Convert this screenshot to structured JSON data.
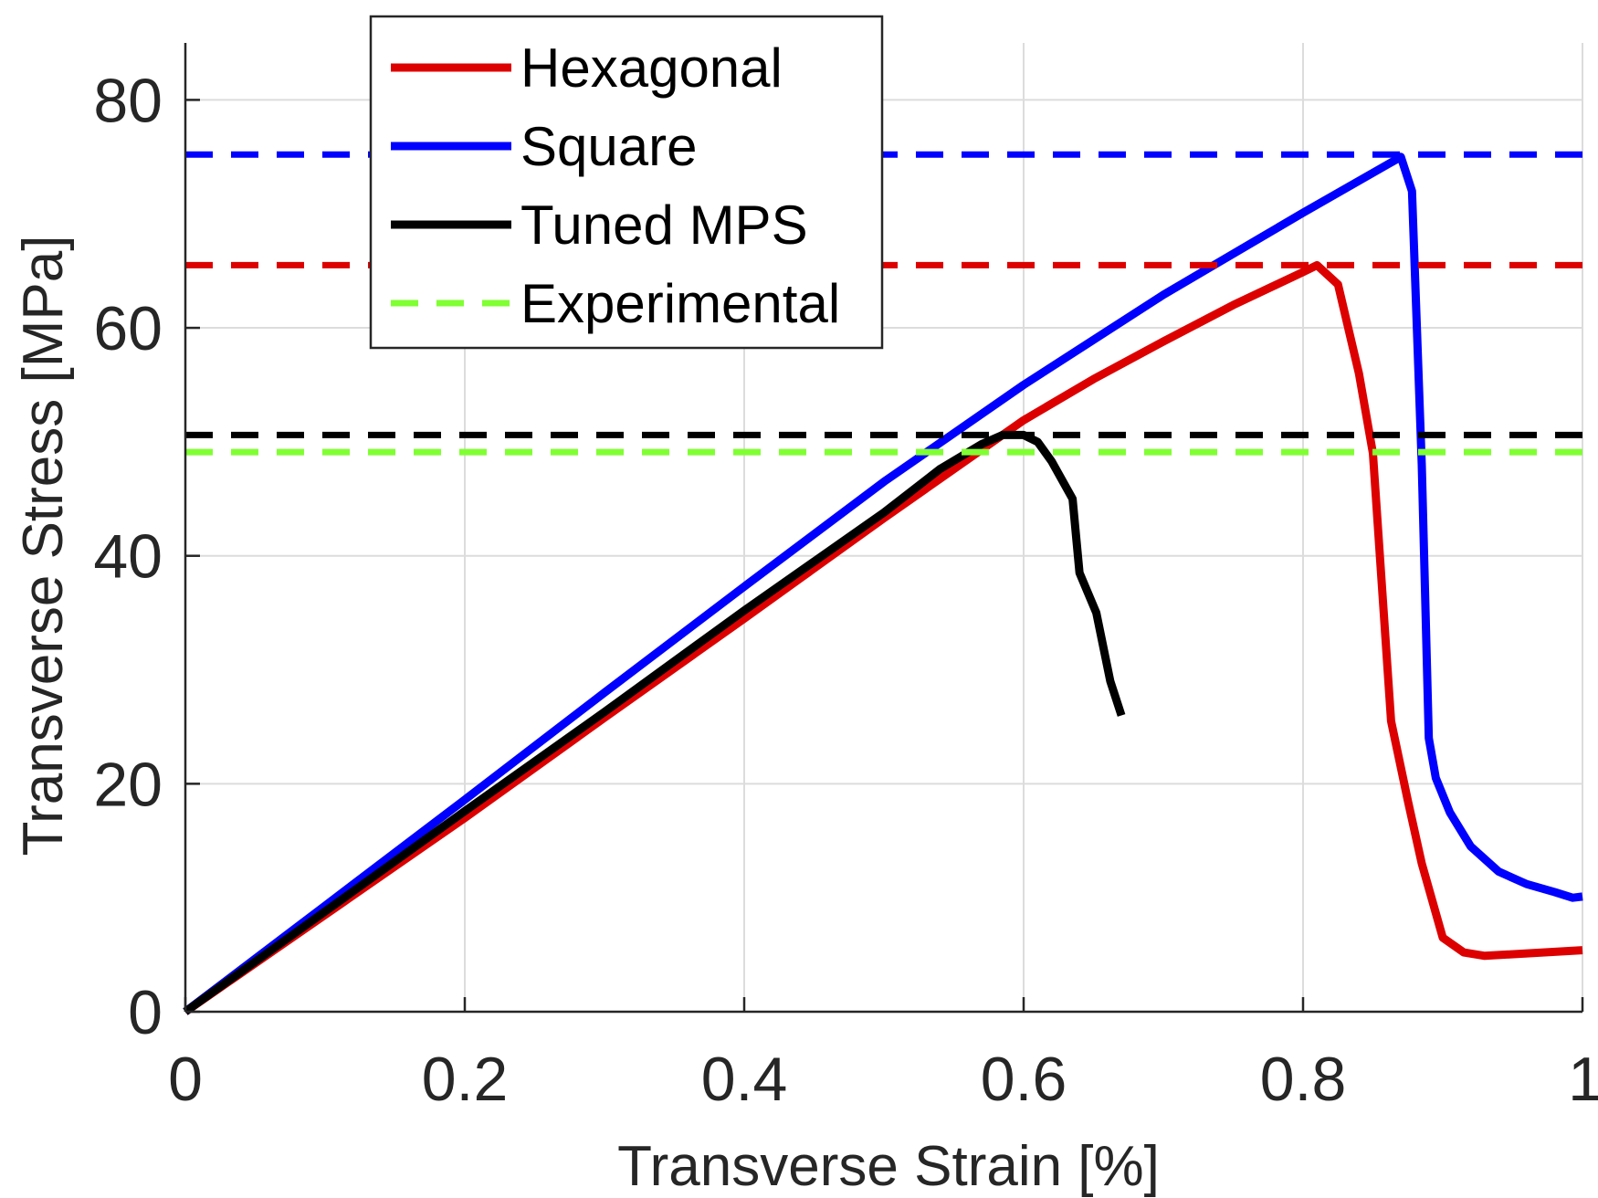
{
  "chart_data": {
    "type": "line",
    "title": "",
    "xlabel": "Transverse Strain [%]",
    "ylabel": "Transverse Stress [MPa]",
    "xlim": [
      0,
      1
    ],
    "ylim": [
      0,
      85
    ],
    "xticks": [
      0,
      0.2,
      0.4,
      0.6,
      0.8,
      1
    ],
    "xtick_labels": [
      "0",
      "0.2",
      "0.4",
      "0.6",
      "0.8",
      "1"
    ],
    "yticks": [
      0,
      20,
      40,
      60,
      80
    ],
    "ytick_labels": [
      "0",
      "20",
      "40",
      "60",
      "80"
    ],
    "grid": true,
    "legend_position": "top-left",
    "series": [
      {
        "name": "Hexagonal",
        "color": "#dd0000",
        "style": "solid",
        "x": [
          0,
          0.1,
          0.2,
          0.3,
          0.4,
          0.5,
          0.55,
          0.6,
          0.65,
          0.7,
          0.75,
          0.8,
          0.81,
          0.825,
          0.84,
          0.85,
          0.863,
          0.875,
          0.885,
          0.9,
          0.915,
          0.93,
          1.0
        ],
        "y": [
          0,
          8.5,
          17,
          25.8,
          34.5,
          43.3,
          47.6,
          51.9,
          55.5,
          58.8,
          62,
          64.9,
          65.5,
          63.8,
          56,
          49,
          25.5,
          18.5,
          13,
          6.5,
          5.2,
          4.9,
          5.4
        ]
      },
      {
        "name": "Square",
        "color": "#0000ff",
        "style": "solid",
        "x": [
          0,
          0.1,
          0.2,
          0.3,
          0.4,
          0.5,
          0.6,
          0.7,
          0.8,
          0.87,
          0.878,
          0.885,
          0.89,
          0.895,
          0.905,
          0.92,
          0.94,
          0.96,
          0.98,
          0.993,
          1.0
        ],
        "y": [
          0,
          9.3,
          18.6,
          28,
          37.3,
          46.5,
          55,
          62.9,
          70.1,
          75,
          72,
          48,
          24,
          20.5,
          17.5,
          14.5,
          12.3,
          11.2,
          10.5,
          10,
          10.1
        ]
      },
      {
        "name": "Tuned MPS",
        "color": "#000000",
        "style": "solid",
        "x": [
          0,
          0.1,
          0.2,
          0.3,
          0.4,
          0.5,
          0.54,
          0.57,
          0.585,
          0.6,
          0.61,
          0.62,
          0.635,
          0.64,
          0.652,
          0.662,
          0.67
        ],
        "y": [
          0,
          8.8,
          17.6,
          26.3,
          35.2,
          43.8,
          47.6,
          49.8,
          50.6,
          50.6,
          50,
          48.3,
          45,
          38.5,
          35,
          29,
          26
        ]
      },
      {
        "name": "Tuned MPS",
        "color": "#000000",
        "style": "dashed",
        "x": [
          0,
          1
        ],
        "y": [
          50.6,
          50.6
        ]
      },
      {
        "name": "Experimental",
        "color": "#80ff33",
        "style": "dashed",
        "x": [
          0,
          1
        ],
        "y": [
          49.1,
          49.1
        ]
      },
      {
        "name": "Hexagonal",
        "color": "#dd0000",
        "style": "dashed",
        "x": [
          0,
          1
        ],
        "y": [
          65.5,
          65.5
        ]
      },
      {
        "name": "Square",
        "color": "#0000ff",
        "style": "dashed",
        "x": [
          0,
          1
        ],
        "y": [
          75.2,
          75.2
        ]
      }
    ],
    "legend": [
      {
        "label": "Hexagonal",
        "color": "#dd0000",
        "style": "solid"
      },
      {
        "label": "Square",
        "color": "#0000ff",
        "style": "solid"
      },
      {
        "label": "Tuned MPS",
        "color": "#000000",
        "style": "solid"
      },
      {
        "label": "Experimental",
        "color": "#80ff33",
        "style": "dashed"
      }
    ]
  }
}
